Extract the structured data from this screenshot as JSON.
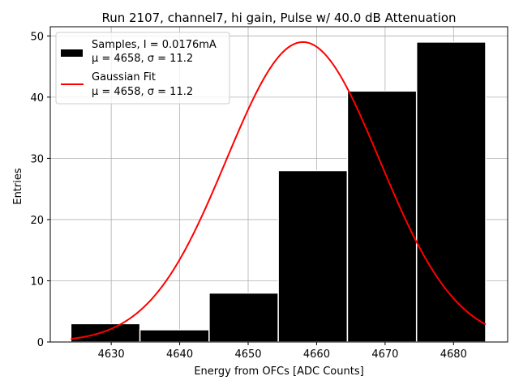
{
  "chart_data": {
    "type": "bar",
    "title": "Run 2107, channel7, hi gain, Pulse w/ 40.0 dB Attenuation",
    "xlabel": "Energy from OFCs [ADC Counts]",
    "ylabel": "Entries",
    "xlim": [
      4621.1,
      4687.9
    ],
    "ylim": [
      0,
      51.5
    ],
    "xticks": [
      4630,
      4640,
      4650,
      4660,
      4670,
      4680
    ],
    "yticks": [
      0,
      10,
      20,
      30,
      40,
      50
    ],
    "grid": true,
    "legend_position": "top-left",
    "bins": [
      {
        "x0": 4624.1,
        "x1": 4634.2,
        "value": 3
      },
      {
        "x0": 4634.2,
        "x1": 4644.3,
        "value": 2
      },
      {
        "x0": 4644.3,
        "x1": 4654.4,
        "value": 8
      },
      {
        "x0": 4654.4,
        "x1": 4664.5,
        "value": 28
      },
      {
        "x0": 4664.5,
        "x1": 4674.6,
        "value": 41
      },
      {
        "x0": 4674.6,
        "x1": 4684.7,
        "value": 49
      }
    ],
    "series": [
      {
        "name": "Samples, I = 0.0176mA",
        "name_line2": "μ = 4658, σ = 11.2",
        "type": "histogram",
        "color": "#000000",
        "bin_edges": [
          4624.1,
          4634.2,
          4644.3,
          4654.4,
          4664.5,
          4674.6,
          4684.7
        ],
        "values": [
          3,
          2,
          8,
          28,
          41,
          49
        ]
      },
      {
        "name": "Gaussian Fit",
        "name_line2": "μ = 4658, σ = 11.2",
        "type": "line",
        "color": "#ff0000",
        "mu": 4658,
        "sigma": 11.2,
        "amplitude": 49,
        "x_range": [
          4624.1,
          4684.7
        ]
      }
    ]
  }
}
